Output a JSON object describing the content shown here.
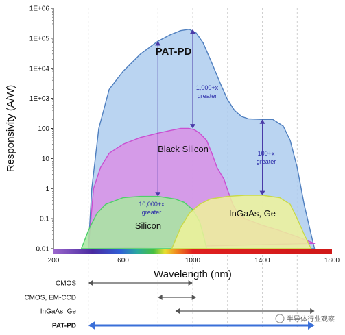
{
  "chart_data": {
    "type": "area",
    "xlabel": "Wavelength (nm)",
    "ylabel": "Responsivity (A/W)",
    "xlim": [
      200,
      1800
    ],
    "ylim_log10": [
      -2,
      6
    ],
    "y_scale": "log",
    "x_ticks": [
      "200",
      "600",
      "1000",
      "1400",
      "1800"
    ],
    "y_ticks": [
      "0.01",
      "0.1",
      "1",
      "10",
      "100",
      "1E+03",
      "1E+04",
      "1E+05",
      "1E+06"
    ],
    "grid": "vertical dashed",
    "series": [
      {
        "name": "PAT-PD",
        "color": "#4f7fbf",
        "fill": "#aecdee",
        "x": [
          400,
          420,
          460,
          520,
          600,
          700,
          800,
          870,
          930,
          980,
          1020,
          1060,
          1110,
          1160,
          1200,
          1240,
          1280,
          1320,
          1400,
          1460,
          1520,
          1560,
          1600,
          1640,
          1680,
          1700
        ],
        "y": [
          0.01,
          1,
          100,
          2000,
          8000,
          30000,
          80000,
          130000,
          180000,
          200000,
          150000,
          70000,
          15000,
          3000,
          900,
          400,
          250,
          210,
          200,
          200,
          120,
          40,
          5,
          0.3,
          0.03,
          0.01
        ]
      },
      {
        "name": "Black Silicon",
        "color": "#c94fd0",
        "fill": "#d990e6",
        "x": [
          400,
          430,
          470,
          520,
          600,
          700,
          800,
          870,
          930,
          980,
          1010,
          1040,
          1080,
          1110,
          1140,
          1180,
          1200,
          1230,
          1260,
          1300,
          1400,
          1500,
          1600,
          1700
        ],
        "y": [
          0.01,
          1,
          5,
          15,
          30,
          50,
          70,
          85,
          100,
          100,
          90,
          70,
          40,
          15,
          5,
          2,
          0.9,
          0.3,
          0.15,
          0.1,
          0.06,
          0.04,
          0.025,
          0.015
        ]
      },
      {
        "name": "Silicon",
        "color": "#4fcf6a",
        "fill": "#a8e8a0",
        "x": [
          360,
          400,
          450,
          500,
          600,
          700,
          800,
          900,
          950,
          1000,
          1040,
          1060,
          1080
        ],
        "y": [
          0.01,
          0.04,
          0.15,
          0.3,
          0.5,
          0.55,
          0.55,
          0.45,
          0.35,
          0.2,
          0.08,
          0.03,
          0.01
        ]
      },
      {
        "name": "InGaAs, Ge",
        "color": "#c8d94a",
        "fill": "#eef29a",
        "x": [
          880,
          930,
          980,
          1040,
          1100,
          1200,
          1300,
          1400,
          1500,
          1560,
          1600,
          1640,
          1680
        ],
        "y": [
          0.01,
          0.05,
          0.15,
          0.3,
          0.45,
          0.55,
          0.6,
          0.6,
          0.5,
          0.3,
          0.1,
          0.03,
          0.01
        ]
      }
    ],
    "region_labels": [
      "PAT-PD",
      "Black Silicon",
      "Silicon",
      "InGaAs, Ge"
    ],
    "annotations": [
      {
        "text_lines": [
          "1,000+x",
          "greater"
        ],
        "x": 1000,
        "from_y": 100,
        "to_y": 200000
      },
      {
        "text_lines": [
          "100+x",
          "greater"
        ],
        "x": 1400,
        "from_y": 0.6,
        "to_y": 200
      },
      {
        "text_lines": [
          "10,000+x",
          "greater"
        ],
        "x": 800,
        "from_y": 0.55,
        "to_y": 80000
      }
    ],
    "ranges": [
      {
        "name": "CMOS",
        "x_from": 400,
        "x_to": 1000,
        "style": "thin"
      },
      {
        "name": "CMOS, EM-CCD",
        "x_from": 800,
        "x_to": 1020,
        "style": "thin"
      },
      {
        "name": "InGaAs, Ge",
        "x_from": 900,
        "x_to": 1700,
        "style": "thin"
      },
      {
        "name": "PAT-PD",
        "x_from": 400,
        "x_to": 1700,
        "style": "bold"
      }
    ]
  },
  "watermark": "半导体行业观察",
  "colors": {
    "text": "#111111",
    "annotation": "#2a2aa8",
    "range_arrow": "#555555",
    "patpd_arrow": "#3a6fd8"
  }
}
